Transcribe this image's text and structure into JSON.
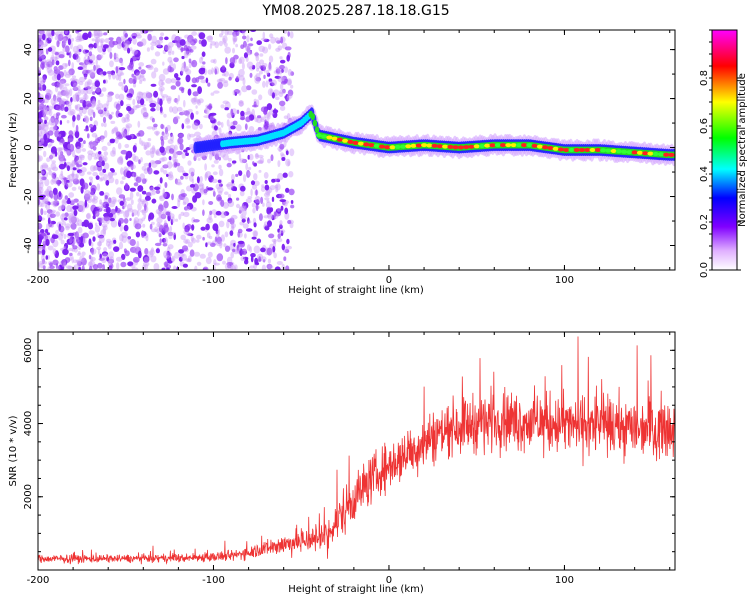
{
  "title": "YM08.2025.287.18.18.G15",
  "chart_data": [
    {
      "type": "heatmap",
      "xlabel": "Height of straight line (km)",
      "ylabel": "Frequency (Hz)",
      "xlim": [
        -200,
        163
      ],
      "ylim": [
        -50,
        48
      ],
      "xticks": [
        -200,
        -100,
        0,
        100
      ],
      "yticks": [
        -40,
        -20,
        0,
        20,
        40
      ],
      "trace": [
        {
          "x": -110,
          "y": 0
        },
        {
          "x": -90,
          "y": 2
        },
        {
          "x": -75,
          "y": 3
        },
        {
          "x": -60,
          "y": 6
        },
        {
          "x": -50,
          "y": 10
        },
        {
          "x": -44,
          "y": 14
        },
        {
          "x": -40,
          "y": 5
        },
        {
          "x": -20,
          "y": 2
        },
        {
          "x": 0,
          "y": 0
        },
        {
          "x": 20,
          "y": 1
        },
        {
          "x": 40,
          "y": 0
        },
        {
          "x": 60,
          "y": 1
        },
        {
          "x": 80,
          "y": 1
        },
        {
          "x": 100,
          "y": -1
        },
        {
          "x": 120,
          "y": -1
        },
        {
          "x": 140,
          "y": -2
        },
        {
          "x": 160,
          "y": -3
        }
      ],
      "colorbar": {
        "label": "Normalized spectral amplitude",
        "range": [
          0,
          1
        ],
        "ticks": [
          "0.0",
          "0.2",
          "0.4",
          "0.6",
          "0.8"
        ]
      }
    },
    {
      "type": "line",
      "xlabel": "Height of straight line (km)",
      "ylabel": "SNR (10 * v/v)",
      "xlim": [
        -200,
        163
      ],
      "ylim": [
        0,
        6500
      ],
      "xticks": [
        -200,
        -100,
        0,
        100
      ],
      "yticks": [
        2000,
        4000,
        6000
      ],
      "series": [
        {
          "name": "SNR",
          "color": "#ee3333",
          "envelope": [
            {
              "x": -200,
              "mean": 300,
              "spread": 150
            },
            {
              "x": -120,
              "mean": 320,
              "spread": 150
            },
            {
              "x": -90,
              "mean": 380,
              "spread": 200
            },
            {
              "x": -70,
              "mean": 600,
              "spread": 300
            },
            {
              "x": -50,
              "mean": 800,
              "spread": 500
            },
            {
              "x": -35,
              "mean": 900,
              "spread": 600
            },
            {
              "x": -25,
              "mean": 1700,
              "spread": 900
            },
            {
              "x": -10,
              "mean": 2500,
              "spread": 900
            },
            {
              "x": 5,
              "mean": 3000,
              "spread": 900
            },
            {
              "x": 20,
              "mean": 3500,
              "spread": 1000
            },
            {
              "x": 35,
              "mean": 3900,
              "spread": 1000
            },
            {
              "x": 60,
              "mean": 4100,
              "spread": 1100
            },
            {
              "x": 90,
              "mean": 4000,
              "spread": 1100
            },
            {
              "x": 130,
              "mean": 3900,
              "spread": 1100
            },
            {
              "x": 163,
              "mean": 3900,
              "spread": 1100
            }
          ]
        }
      ]
    }
  ]
}
